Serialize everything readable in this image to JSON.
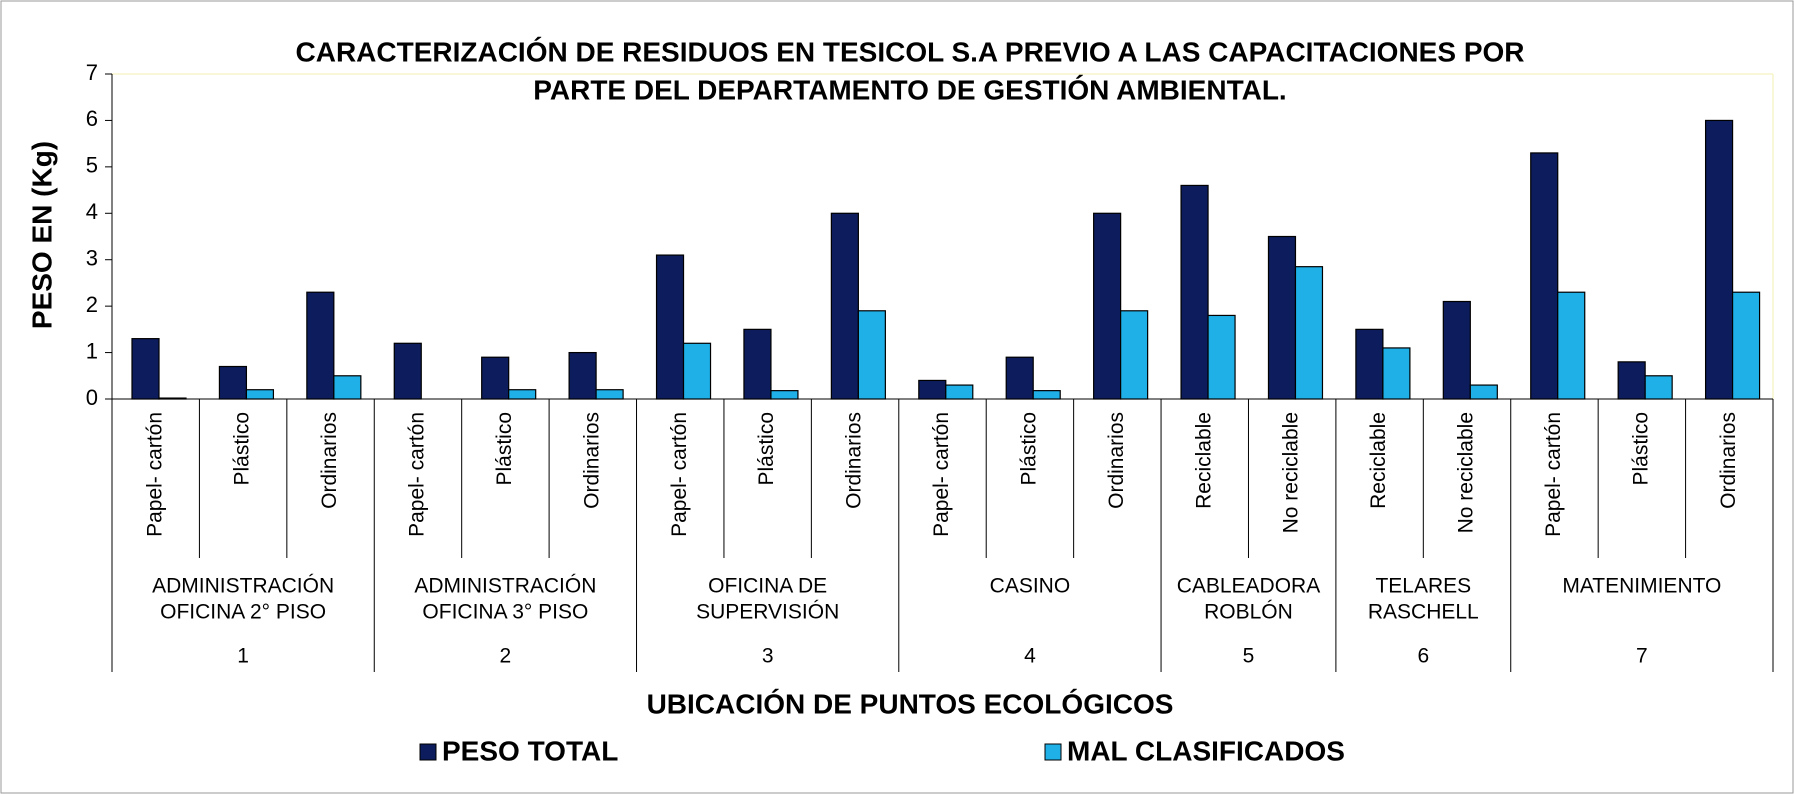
{
  "chart_data": {
    "type": "bar",
    "title": [
      "CARACTERIZACIÓN DE RESIDUOS EN TESICOL S.A PREVIO A LAS CAPACITACIONES POR",
      "PARTE DEL DEPARTAMENTO DE GESTIÓN AMBIENTAL."
    ],
    "y_label": "PESO EN (Kg)",
    "x_label": "UBICACIÓN DE PUNTOS ECOLÓGICOS",
    "groups": [
      {
        "name": [
          "ADMINISTRACIÓN",
          "OFICINA 2° PISO"
        ],
        "number": 1,
        "categories": [
          "Papel- cartón",
          "Plástico",
          "Ordinarios"
        ]
      },
      {
        "name": [
          "ADMINISTRACIÓN",
          "OFICINA 3° PISO"
        ],
        "number": 2,
        "categories": [
          "Papel- cartón",
          "Plástico",
          "Ordinarios"
        ]
      },
      {
        "name": [
          "OFICINA DE",
          "SUPERVISIÓN"
        ],
        "number": 3,
        "categories": [
          "Papel- cartón",
          "Plástico",
          "Ordinarios"
        ]
      },
      {
        "name": [
          "CASINO"
        ],
        "number": 4,
        "categories": [
          "Papel- cartón",
          "Plástico",
          "Ordinarios"
        ]
      },
      {
        "name": [
          "CABLEADORA",
          "ROBLÓN"
        ],
        "number": 5,
        "categories": [
          "Reciclable",
          "No reciclable"
        ]
      },
      {
        "name": [
          "TELARES",
          "RASCHELL"
        ],
        "number": 6,
        "categories": [
          "Reciclable",
          "No reciclable"
        ]
      },
      {
        "name": [
          "MATENIMIENTO"
        ],
        "number": 7,
        "categories": [
          "Papel- cartón",
          "Plástico",
          "Ordinarios"
        ]
      }
    ],
    "series": [
      {
        "name": "PESO TOTAL",
        "color": "#0c1c5c",
        "values": [
          1.3,
          0.7,
          2.3,
          1.2,
          0.9,
          1.0,
          3.1,
          1.5,
          4.0,
          0.4,
          0.9,
          4.0,
          4.6,
          3.5,
          1.5,
          2.1,
          5.3,
          0.8,
          6.0
        ]
      },
      {
        "name": "MAL CLASIFICADOS",
        "color": "#1fb0e8",
        "values": [
          0.02,
          0.2,
          0.5,
          0,
          0.2,
          0.2,
          1.2,
          0.18,
          1.9,
          0.3,
          0.18,
          1.9,
          1.8,
          2.85,
          1.1,
          0.3,
          2.3,
          0.5,
          2.3
        ]
      }
    ],
    "ylim": [
      0,
      7
    ],
    "yticks": [
      0,
      1,
      2,
      3,
      4,
      5,
      6,
      7
    ],
    "grid": false
  }
}
